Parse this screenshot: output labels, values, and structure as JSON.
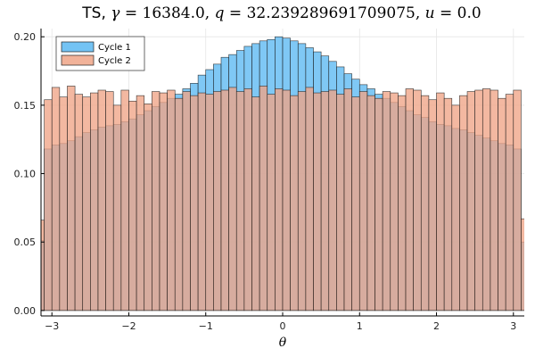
{
  "chart_data": {
    "type": "bar",
    "title": {
      "prefix": "TS, ",
      "gamma_sym": "γ",
      "gamma_val": " = 16384.0, ",
      "q_sym": "q",
      "q_val": " = 32.239289691709075, ",
      "u_sym": "u",
      "u_val": " = 0.0"
    },
    "xlabel": "θ",
    "ylabel": "",
    "xlim": [
      -3.14159,
      3.14159
    ],
    "ylim": [
      -0.004,
      0.206
    ],
    "xticks": [
      -3,
      -2,
      -1,
      0,
      1,
      2,
      3
    ],
    "xtick_labels": [
      "−3",
      "−2",
      "−1",
      "0",
      "1",
      "2",
      "3"
    ],
    "yticks": [
      0.0,
      0.05,
      0.1,
      0.15,
      0.2
    ],
    "ytick_labels": [
      "0.00",
      "0.05",
      "0.10",
      "0.15",
      "0.20"
    ],
    "grid": true,
    "legend_position": "top-left",
    "bins": {
      "start": -3.2,
      "width": 0.1,
      "count": 64
    },
    "series": [
      {
        "name": "Cycle 1",
        "color": "#5BB8F2",
        "values": [
          0.051,
          0.118,
          0.121,
          0.122,
          0.124,
          0.127,
          0.13,
          0.132,
          0.134,
          0.135,
          0.136,
          0.138,
          0.14,
          0.143,
          0.146,
          0.149,
          0.152,
          0.155,
          0.158,
          0.162,
          0.166,
          0.172,
          0.176,
          0.18,
          0.185,
          0.187,
          0.19,
          0.193,
          0.195,
          0.197,
          0.198,
          0.2,
          0.199,
          0.197,
          0.195,
          0.192,
          0.189,
          0.186,
          0.182,
          0.178,
          0.173,
          0.169,
          0.165,
          0.162,
          0.158,
          0.155,
          0.152,
          0.149,
          0.146,
          0.143,
          0.141,
          0.138,
          0.136,
          0.135,
          0.133,
          0.132,
          0.13,
          0.128,
          0.126,
          0.124,
          0.122,
          0.121,
          0.118,
          0.05
        ]
      },
      {
        "name": "Cycle 2",
        "color": "#EFA487",
        "values": [
          0.066,
          0.154,
          0.163,
          0.156,
          0.164,
          0.158,
          0.156,
          0.159,
          0.161,
          0.16,
          0.15,
          0.161,
          0.153,
          0.157,
          0.151,
          0.16,
          0.159,
          0.161,
          0.155,
          0.16,
          0.157,
          0.159,
          0.158,
          0.16,
          0.161,
          0.163,
          0.16,
          0.162,
          0.156,
          0.164,
          0.158,
          0.162,
          0.161,
          0.157,
          0.16,
          0.163,
          0.159,
          0.16,
          0.161,
          0.158,
          0.162,
          0.156,
          0.16,
          0.157,
          0.155,
          0.16,
          0.159,
          0.157,
          0.162,
          0.161,
          0.157,
          0.154,
          0.159,
          0.155,
          0.15,
          0.157,
          0.16,
          0.161,
          0.162,
          0.161,
          0.155,
          0.158,
          0.161,
          0.067
        ]
      }
    ]
  }
}
